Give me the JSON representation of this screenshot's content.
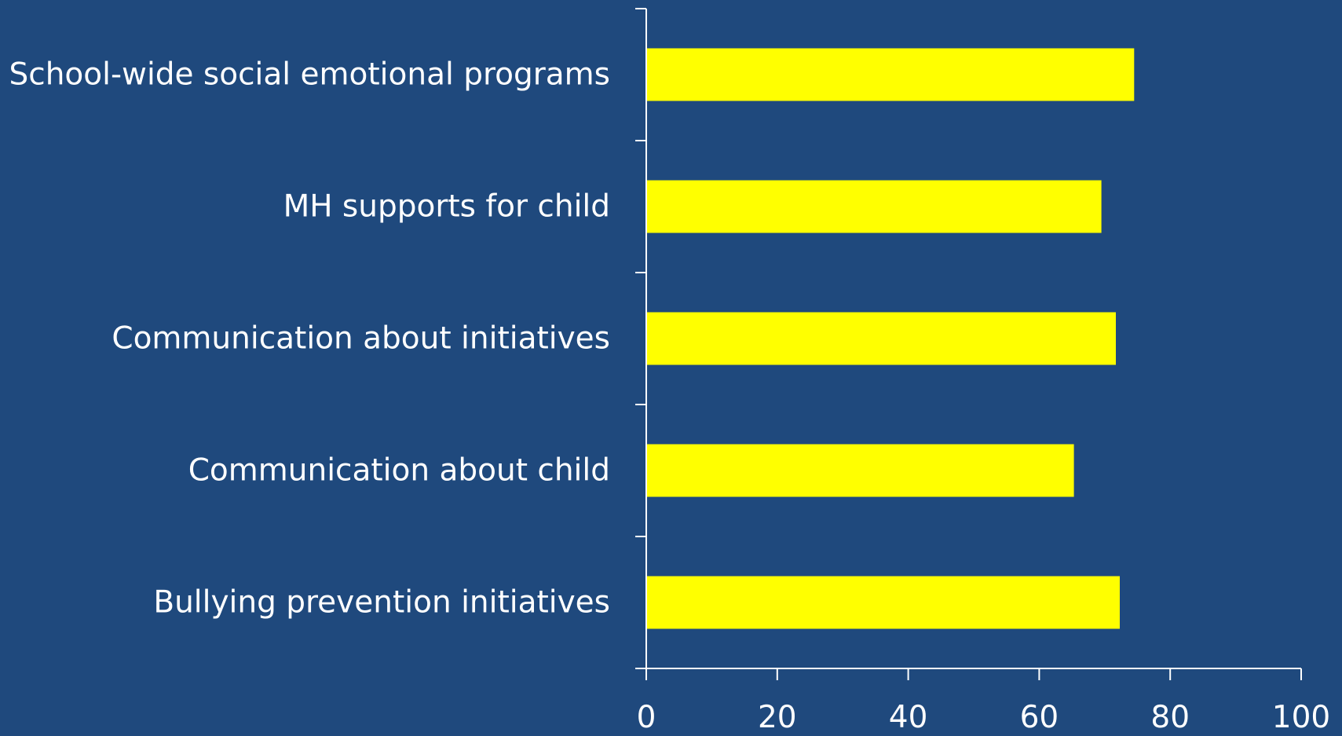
{
  "chart_data": {
    "type": "bar",
    "orientation": "horizontal",
    "title": "",
    "xlabel": "",
    "ylabel": "",
    "categories": [
      "School-wide social emotional programs",
      "MH supports for child",
      "Communication about initiatives",
      "Communication about child",
      "Bullying prevention initiatives"
    ],
    "values": [
      74.5,
      69.5,
      71.7,
      65.3,
      72.3
    ],
    "xlim": [
      0,
      100
    ],
    "xticks": [
      0,
      20,
      40,
      60,
      80,
      100
    ],
    "grid": false,
    "legend": "none"
  },
  "colors": {
    "background": "#1f497d",
    "bar": "#ffff00",
    "axis": "#ffffff",
    "text": "#ffffff"
  }
}
